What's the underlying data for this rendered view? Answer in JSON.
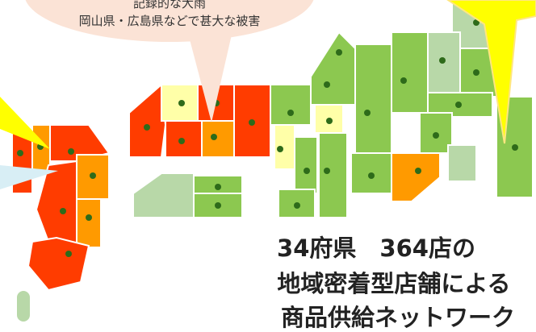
{
  "callout": {
    "lines": [
      "記録的な大雨",
      "岡山県・広島県などで甚大な被害"
    ]
  },
  "headline": {
    "lines": [
      "34府県　364店の",
      "地域密着型店舗による",
      "商品供給ネットワーク"
    ]
  }
}
